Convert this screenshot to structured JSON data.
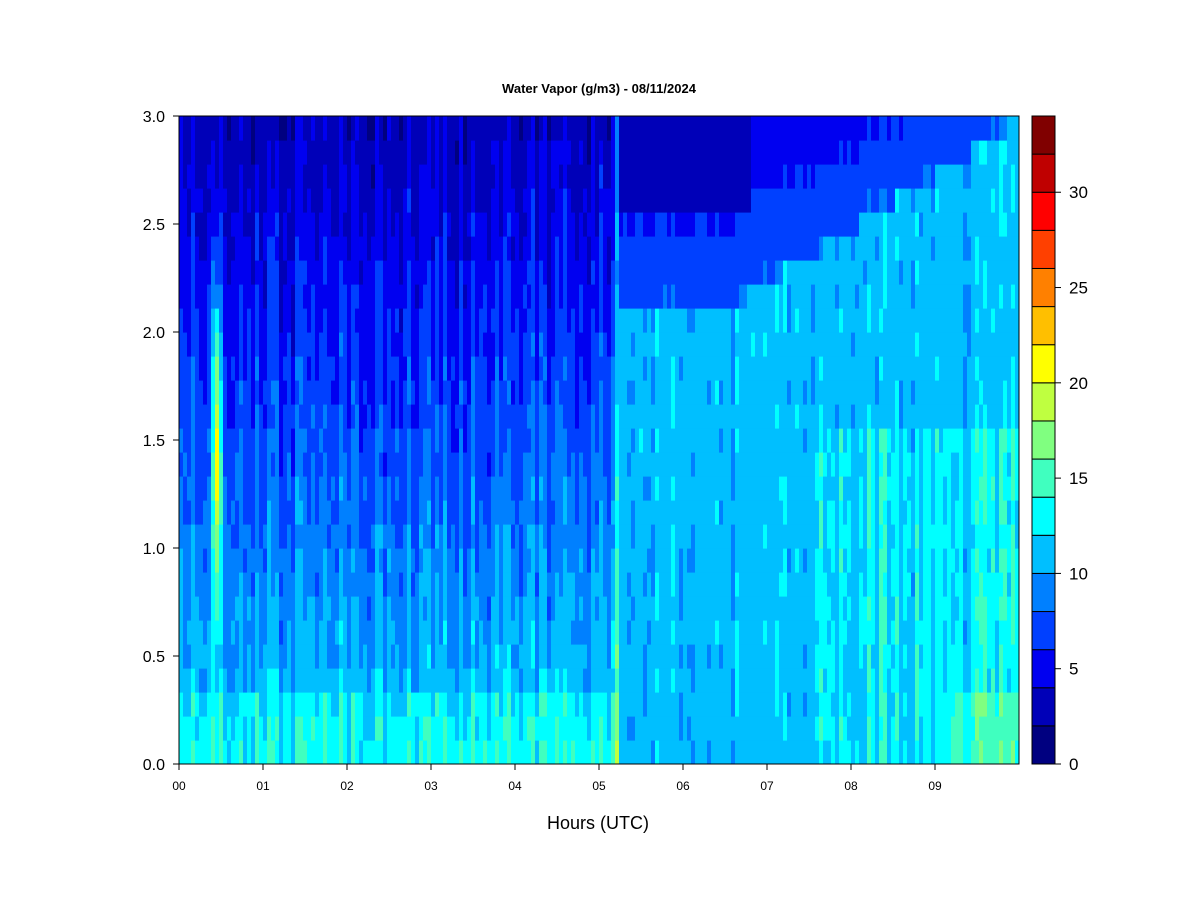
{
  "chart_data": {
    "type": "heatmap",
    "title": "Water Vapor (g/m3) - 08/11/2024",
    "xlabel": "Hours (UTC)",
    "ylabel": "",
    "xlim": [
      0,
      10
    ],
    "ylim": [
      0.0,
      3.0
    ],
    "x_ticks": [
      "00",
      "01",
      "02",
      "03",
      "04",
      "05",
      "06",
      "07",
      "08",
      "09"
    ],
    "y_ticks": [
      "0.0",
      "0.5",
      "1.0",
      "1.5",
      "2.0",
      "2.5",
      "3.0"
    ],
    "colorbar": {
      "range": [
        0,
        34
      ],
      "ticks": [
        "0",
        "5",
        "10",
        "15",
        "20",
        "25",
        "30"
      ],
      "levels": [
        {
          "from": 0,
          "to": 2,
          "color": "#000080"
        },
        {
          "from": 2,
          "to": 4,
          "color": "#0000b8"
        },
        {
          "from": 4,
          "to": 6,
          "color": "#0000f0"
        },
        {
          "from": 6,
          "to": 8,
          "color": "#0040ff"
        },
        {
          "from": 8,
          "to": 10,
          "color": "#0080ff"
        },
        {
          "from": 10,
          "to": 12,
          "color": "#00bfff"
        },
        {
          "from": 12,
          "to": 14,
          "color": "#00ffff"
        },
        {
          "from": 14,
          "to": 16,
          "color": "#40ffbf"
        },
        {
          "from": 16,
          "to": 18,
          "color": "#80ff80"
        },
        {
          "from": 18,
          "to": 20,
          "color": "#bfff40"
        },
        {
          "from": 20,
          "to": 22,
          "color": "#ffff00"
        },
        {
          "from": 22,
          "to": 24,
          "color": "#ffbf00"
        },
        {
          "from": 24,
          "to": 26,
          "color": "#ff8000"
        },
        {
          "from": 26,
          "to": 28,
          "color": "#ff4000"
        },
        {
          "from": 28,
          "to": 30,
          "color": "#ff0000"
        },
        {
          "from": 30,
          "to": 32,
          "color": "#bf0000"
        },
        {
          "from": 32,
          "to": 34,
          "color": "#800000"
        }
      ]
    }
  }
}
